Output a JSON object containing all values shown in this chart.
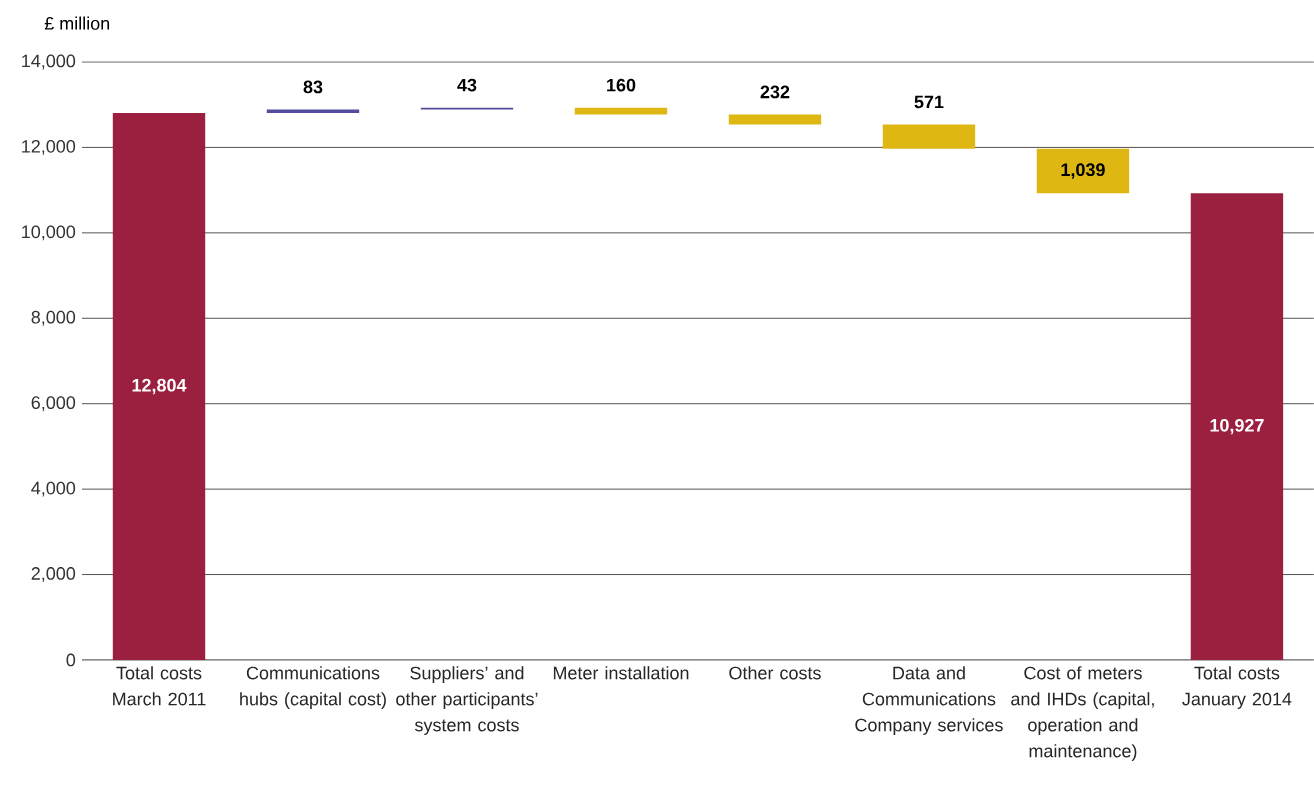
{
  "chart_data": {
    "type": "bar",
    "ylabel": "£ million",
    "categories": [
      "Total costs March 2011",
      "Communications hubs (capital cost)",
      "Suppliers’ and other participants’ system costs",
      "Meter installation",
      "Other costs",
      "Data and Communications Company services",
      "Cost of meters and IHDs (capital, operation and maintenance)",
      "Total costs January 2014"
    ],
    "values": [
      12804,
      83,
      43,
      -160,
      -232,
      -571,
      -1039,
      10927
    ],
    "base": [
      0,
      12804,
      12887,
      12930,
      12770,
      12538,
      11967,
      0
    ],
    "colors": [
      "#9b1f3f",
      "#514c9e",
      "#514c9e",
      "#deb713",
      "#deb713",
      "#deb713",
      "#deb713",
      "#9b1f3f"
    ],
    "value_labels": [
      "12,804",
      "83",
      "43",
      "160",
      "232",
      "571",
      "1,039",
      "10,927"
    ],
    "ylim": [
      0,
      14000
    ],
    "yticks": [
      0,
      {
        "value": 2000,
        "label": "2,000"
      },
      {
        "value": 4000,
        "label": "4,000"
      },
      {
        "value": 6000,
        "label": "6,000"
      },
      {
        "value": 8000,
        "label": "8,000"
      },
      {
        "value": 10000,
        "label": "10,000"
      },
      {
        "value": 12000,
        "label": "12,000"
      },
      {
        "value": 14000,
        "label": "14,000"
      }
    ],
    "grid": "y"
  }
}
